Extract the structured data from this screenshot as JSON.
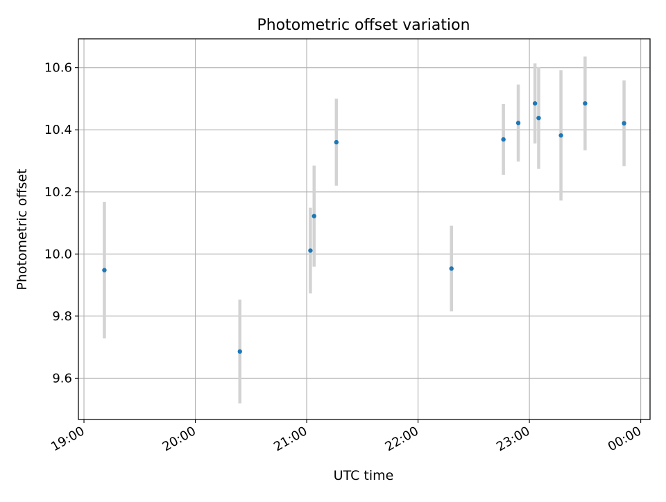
{
  "chart_data": {
    "type": "scatter",
    "title": "Photometric offset variation",
    "xlabel": "UTC time",
    "ylabel": "Photometric offset",
    "xlim": [
      "18:57",
      "00:05"
    ],
    "ylim": [
      9.467,
      10.693
    ],
    "x_ticks": [
      "19:00",
      "20:00",
      "21:00",
      "22:00",
      "23:00",
      "00:00"
    ],
    "y_ticks": [
      9.6,
      9.8,
      10.0,
      10.2,
      10.4,
      10.6
    ],
    "y_tick_labels": [
      "9.6",
      "9.8",
      "10.0",
      "10.2",
      "10.4",
      "10.6"
    ],
    "grid": true,
    "marker_color": "#1f77b4",
    "errorbar_color": "#d3d3d3",
    "points": [
      {
        "x": "19:11",
        "y": 9.948,
        "err": 0.22
      },
      {
        "x": "20:24",
        "y": 9.686,
        "err": 0.167
      },
      {
        "x": "21:02",
        "y": 10.011,
        "err": 0.138
      },
      {
        "x": "21:04",
        "y": 10.122,
        "err": 0.163
      },
      {
        "x": "21:16",
        "y": 10.36,
        "err": 0.14
      },
      {
        "x": "22:18",
        "y": 9.953,
        "err": 0.138
      },
      {
        "x": "22:46",
        "y": 10.369,
        "err": 0.114
      },
      {
        "x": "22:54",
        "y": 10.422,
        "err": 0.124
      },
      {
        "x": "23:03",
        "y": 10.485,
        "err": 0.129
      },
      {
        "x": "23:05",
        "y": 10.438,
        "err": 0.164
      },
      {
        "x": "23:17",
        "y": 10.382,
        "err": 0.21
      },
      {
        "x": "23:30",
        "y": 10.485,
        "err": 0.151
      },
      {
        "x": "23:51",
        "y": 10.421,
        "err": 0.138
      }
    ]
  }
}
